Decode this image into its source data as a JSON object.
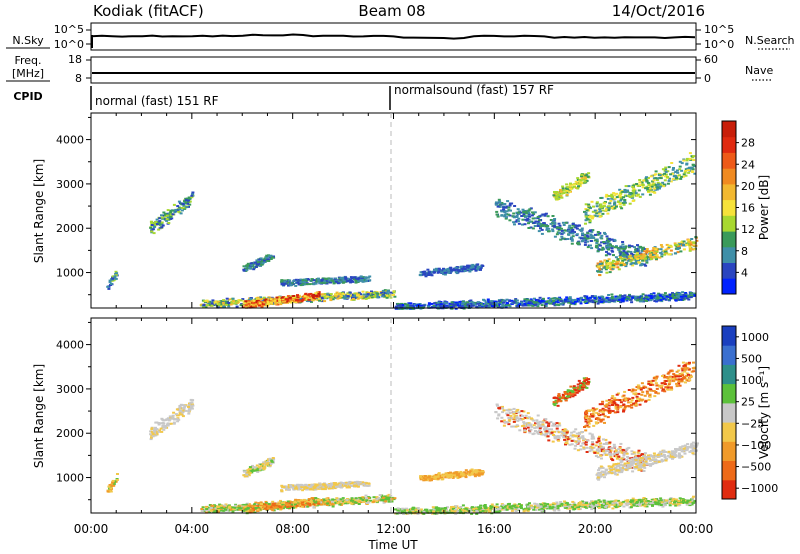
{
  "header": {
    "station": "Kodiak (fitACF)",
    "beam": "Beam 08",
    "date": "14/Oct/2016"
  },
  "params": {
    "nsky_label": "N.Sky",
    "nsky_ticks": [
      "10^5",
      "10^0"
    ],
    "nsearch_label": "N.Search",
    "nsearch_ticks": [
      "10^5",
      "10^0"
    ],
    "freq_label_1": "Freq.",
    "freq_label_2": "[MHz]",
    "freq_ticks": [
      "18",
      "8"
    ],
    "nave_label": "Nave",
    "nave_ticks": [
      "60",
      "0"
    ],
    "cpid_label": "CPID",
    "cpid_segments": [
      "normal (fast) 151 RF",
      "normalsound (fast) 157 RF"
    ]
  },
  "chart_data": [
    {
      "type": "heatmap",
      "ylabel": "Slant Range [km]",
      "xlabel": "Time UT",
      "x_ticks": [
        "00:00",
        "04:00",
        "08:00",
        "12:00",
        "16:00",
        "20:00",
        "00:00"
      ],
      "y_ticks": [
        1000,
        2000,
        3000,
        4000
      ],
      "ylim": [
        200,
        4600
      ],
      "xlim_hours": [
        0,
        24
      ],
      "colorbar": {
        "label": "Power [dB]",
        "ticks": [
          "4",
          "8",
          "12",
          "16",
          "20",
          "24",
          "28"
        ],
        "colors": [
          "#0022ff",
          "#2a45c0",
          "#3f8fa8",
          "#3a9a5a",
          "#a8d830",
          "#f6e23a",
          "#f2b830",
          "#f08a20",
          "#ee5a18",
          "#e02a10",
          "#c81e0a"
        ]
      },
      "regions": [
        {
          "t0": 0.6,
          "t1": 1.0,
          "r0": 700,
          "r1": 1000,
          "cls": [
            2,
            4,
            1
          ]
        },
        {
          "t0": 2.3,
          "t1": 4.0,
          "r0": 2000,
          "r1": 2700,
          "cls": [
            1,
            2,
            3,
            4
          ]
        },
        {
          "t0": 4.3,
          "t1": 12.0,
          "r0": 300,
          "r1": 550,
          "cls": [
            1,
            2,
            3,
            4,
            5,
            6
          ]
        },
        {
          "t0": 6.0,
          "t1": 9.0,
          "r0": 280,
          "r1": 500,
          "cls": [
            5,
            6,
            8,
            9,
            10
          ]
        },
        {
          "t0": 6.0,
          "t1": 7.2,
          "r0": 1100,
          "r1": 1400,
          "cls": [
            1,
            2,
            3
          ]
        },
        {
          "t0": 7.5,
          "t1": 11.0,
          "r0": 780,
          "r1": 880,
          "cls": [
            1,
            2,
            3
          ]
        },
        {
          "t0": 12.0,
          "t1": 23.9,
          "r0": 230,
          "r1": 500,
          "cls": [
            1,
            2,
            3,
            0
          ]
        },
        {
          "t0": 13.0,
          "t1": 15.5,
          "r0": 1000,
          "r1": 1150,
          "cls": [
            1,
            2
          ]
        },
        {
          "t0": 16.0,
          "t1": 22.0,
          "r0": 2500,
          "r1": 1350,
          "cls": [
            1,
            2,
            3
          ]
        },
        {
          "t0": 20.0,
          "t1": 24.0,
          "r0": 1100,
          "r1": 1700,
          "cls": [
            2,
            3,
            4,
            5,
            6,
            7
          ]
        },
        {
          "t0": 18.3,
          "t1": 19.7,
          "r0": 2700,
          "r1": 3200,
          "cls": [
            4,
            5,
            6,
            3
          ]
        },
        {
          "t0": 19.5,
          "t1": 23.9,
          "r0": 2300,
          "r1": 3500,
          "cls": [
            3,
            4,
            5,
            2
          ]
        }
      ]
    },
    {
      "type": "heatmap",
      "ylabel": "Slant Range [km]",
      "xlabel": "Time UT",
      "x_ticks": [
        "00:00",
        "04:00",
        "08:00",
        "12:00",
        "16:00",
        "20:00",
        "00:00"
      ],
      "y_ticks": [
        1000,
        2000,
        3000,
        4000
      ],
      "ylim": [
        200,
        4600
      ],
      "xlim_hours": [
        0,
        24
      ],
      "colorbar": {
        "label": "Velocity [m s⁻¹]",
        "ticks": [
          "1000",
          "500",
          "100",
          "25",
          "−25",
          "−100",
          "−500",
          "−1000"
        ],
        "colors": [
          "#1a3fbf",
          "#3a6fcf",
          "#2e8f8a",
          "#5cc13a",
          "#c8c8c8",
          "#f2c84a",
          "#f09a2a",
          "#ee6a18",
          "#e02c10"
        ]
      },
      "regions": [
        {
          "t0": 0.6,
          "t1": 1.0,
          "r0": 700,
          "r1": 1000,
          "cls": [
            5,
            6,
            3
          ]
        },
        {
          "t0": 2.3,
          "t1": 4.0,
          "r0": 2000,
          "r1": 2700,
          "cls": [
            4,
            4,
            4,
            5
          ]
        },
        {
          "t0": 4.3,
          "t1": 12.0,
          "r0": 300,
          "r1": 550,
          "cls": [
            3,
            5,
            6,
            3,
            4
          ]
        },
        {
          "t0": 6.0,
          "t1": 9.0,
          "r0": 280,
          "r1": 500,
          "cls": [
            5,
            6,
            7,
            3
          ]
        },
        {
          "t0": 6.0,
          "t1": 7.2,
          "r0": 1100,
          "r1": 1400,
          "cls": [
            4,
            5,
            3
          ]
        },
        {
          "t0": 7.5,
          "t1": 11.0,
          "r0": 780,
          "r1": 880,
          "cls": [
            4,
            5
          ]
        },
        {
          "t0": 12.0,
          "t1": 23.9,
          "r0": 230,
          "r1": 500,
          "cls": [
            3,
            3,
            4,
            5
          ]
        },
        {
          "t0": 13.0,
          "t1": 15.5,
          "r0": 1000,
          "r1": 1150,
          "cls": [
            5,
            6
          ]
        },
        {
          "t0": 16.0,
          "t1": 22.0,
          "r0": 2500,
          "r1": 1350,
          "cls": [
            4,
            4,
            5,
            8
          ]
        },
        {
          "t0": 20.0,
          "t1": 24.0,
          "r0": 1100,
          "r1": 1700,
          "cls": [
            4,
            4,
            4,
            5
          ]
        },
        {
          "t0": 18.3,
          "t1": 19.7,
          "r0": 2700,
          "r1": 3200,
          "cls": [
            7,
            8,
            3
          ]
        },
        {
          "t0": 19.5,
          "t1": 23.9,
          "r0": 2300,
          "r1": 3500,
          "cls": [
            7,
            8,
            6,
            5
          ]
        }
      ]
    }
  ]
}
